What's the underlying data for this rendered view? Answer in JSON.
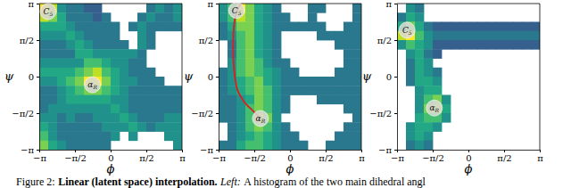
{
  "chart_data": [
    {
      "type": "heatmap",
      "xlabel": "ϕ",
      "ylabel": "ψ",
      "xlim": [
        -3.1416,
        3.1416
      ],
      "ylim": [
        -3.1416,
        3.1416
      ],
      "xticks": [
        {
          "value": -3.1416,
          "label": "−π"
        },
        {
          "value": -1.5708,
          "label": "−π/2"
        },
        0,
        {
          "value": 1.5708,
          "label": "π/2"
        },
        {
          "value": 3.1416,
          "label": "π"
        }
      ],
      "yticks": [
        {
          "value": -3.1416,
          "label": "−π"
        },
        {
          "value": -1.5708,
          "label": "−π/2"
        },
        0,
        {
          "value": 1.5708,
          "label": "π/2"
        },
        {
          "value": 3.1416,
          "label": "π"
        }
      ],
      "x_bins": [
        -3.1416,
        -2.7489,
        -2.3562,
        -1.9635,
        -1.5708,
        -1.1781,
        -0.7854,
        -0.3927,
        0,
        0.3927,
        0.7854,
        1.1781,
        1.5708,
        1.9635,
        2.3562,
        2.7489,
        3.1416
      ],
      "y_bins": [
        3.1416,
        2.7489,
        2.3562,
        1.9635,
        1.5708,
        1.1781,
        0.7854,
        0.3927,
        0,
        -0.3927,
        -0.7854,
        -1.1781,
        -1.5708,
        -1.9635,
        -2.3562,
        -2.7489,
        -3.1416
      ],
      "cells": [
        [
          10,
          9,
          5,
          4,
          4,
          3,
          3,
          null,
          null,
          null,
          null,
          null,
          4,
          5,
          4,
          5
        ],
        [
          9,
          8,
          6,
          4,
          4,
          4,
          3,
          4,
          null,
          null,
          null,
          4,
          5,
          4,
          4,
          5
        ],
        [
          6,
          6,
          6,
          5,
          4,
          4,
          4,
          4,
          4,
          null,
          4,
          5,
          4,
          4,
          4,
          4
        ],
        [
          5,
          5,
          5,
          6,
          5,
          4,
          4,
          4,
          4,
          null,
          null,
          5,
          4,
          null,
          null,
          null
        ],
        [
          4,
          4,
          4,
          5,
          6,
          5,
          4,
          4,
          4,
          4,
          null,
          5,
          4,
          null,
          null,
          null
        ],
        [
          4,
          4,
          4,
          4,
          6,
          6,
          5,
          5,
          5,
          5,
          5,
          4,
          null,
          null,
          null,
          null
        ],
        [
          5,
          5,
          5,
          5,
          5,
          7,
          7,
          6,
          5,
          5,
          4,
          4,
          null,
          null,
          null,
          null
        ],
        [
          6,
          6,
          6,
          6,
          7,
          8,
          9,
          7,
          6,
          5,
          4,
          4,
          4,
          null,
          null,
          null
        ],
        [
          5,
          5,
          6,
          7,
          8,
          10,
          10,
          8,
          6,
          5,
          5,
          4,
          4,
          4,
          null,
          null
        ],
        [
          4,
          4,
          5,
          6,
          7,
          8,
          8,
          7,
          6,
          5,
          4,
          4,
          4,
          4,
          4,
          4
        ],
        [
          4,
          4,
          5,
          6,
          6,
          6,
          6,
          6,
          5,
          5,
          4,
          4,
          4,
          4,
          4,
          4
        ],
        [
          4,
          5,
          5,
          5,
          5,
          5,
          5,
          5,
          6,
          5,
          4,
          4,
          4,
          4,
          4,
          4
        ],
        [
          5,
          5,
          4,
          5,
          4,
          4,
          5,
          5,
          5,
          6,
          5,
          4,
          4,
          4,
          5,
          5
        ],
        [
          6,
          5,
          4,
          4,
          4,
          4,
          4,
          5,
          5,
          5,
          6,
          5,
          4,
          5,
          5,
          5
        ],
        [
          7,
          5,
          4,
          4,
          4,
          4,
          4,
          4,
          5,
          null,
          5,
          null,
          null,
          null,
          5,
          5
        ],
        [
          8,
          6,
          5,
          4,
          4,
          4,
          4,
          4,
          null,
          null,
          null,
          null,
          null,
          null,
          null,
          5
        ]
      ],
      "annotations": [
        {
          "text": "C5",
          "x": -2.75,
          "y": 2.8
        },
        {
          "text": "αR",
          "x": -0.8,
          "y": -0.35
        }
      ]
    },
    {
      "type": "heatmap",
      "xlabel": "ϕ",
      "ylabel": "ψ",
      "xlim": [
        -3.1416,
        3.1416
      ],
      "ylim": [
        -3.1416,
        3.1416
      ],
      "xticks": [
        {
          "value": -3.1416,
          "label": "−π"
        },
        {
          "value": -1.5708,
          "label": "−π/2"
        },
        0,
        {
          "value": 1.5708,
          "label": "π/2"
        },
        {
          "value": 3.1416,
          "label": "π"
        }
      ],
      "yticks": [
        {
          "value": -3.1416,
          "label": "−π"
        },
        {
          "value": -1.5708,
          "label": "−π/2"
        },
        0,
        {
          "value": 1.5708,
          "label": "π/2"
        },
        {
          "value": 3.1416,
          "label": "π"
        }
      ],
      "x_bins": [
        -3.1416,
        -2.7489,
        -2.3562,
        -1.9635,
        -1.5708,
        -1.1781,
        -0.7854,
        -0.3927,
        0,
        0.3927,
        0.7854,
        1.1781,
        1.5708,
        1.9635,
        2.3562,
        2.7489,
        3.1416
      ],
      "y_bins": [
        3.1416,
        2.7489,
        2.3562,
        1.9635,
        1.5708,
        1.1781,
        0.7854,
        0.3927,
        0,
        -0.3927,
        -0.7854,
        -1.1781,
        -1.5708,
        -1.9635,
        -2.3562,
        -2.7489,
        -3.1416
      ],
      "cells": [
        [
          5,
          7,
          10,
          8,
          6,
          5,
          4,
          null,
          null,
          null,
          4,
          4,
          null,
          null,
          null,
          4
        ],
        [
          5,
          7,
          9,
          8,
          6,
          5,
          4,
          4,
          null,
          null,
          4,
          null,
          null,
          null,
          null,
          4
        ],
        [
          4,
          6,
          8,
          8,
          6,
          5,
          4,
          4,
          4,
          4,
          4,
          4,
          null,
          null,
          4,
          4
        ],
        [
          4,
          5,
          7,
          8,
          6,
          5,
          4,
          null,
          null,
          null,
          null,
          4,
          4,
          4,
          4,
          4
        ],
        [
          null,
          4,
          7,
          8,
          6,
          5,
          4,
          null,
          null,
          null,
          null,
          null,
          null,
          4,
          4,
          4
        ],
        [
          null,
          4,
          7,
          8,
          6,
          5,
          4,
          null,
          null,
          null,
          null,
          null,
          null,
          null,
          4,
          4
        ],
        [
          null,
          5,
          7,
          8,
          7,
          5,
          4,
          4,
          null,
          null,
          null,
          null,
          null,
          null,
          4,
          4
        ],
        [
          4,
          5,
          7,
          8,
          7,
          6,
          5,
          4,
          4,
          null,
          null,
          null,
          null,
          4,
          4,
          4
        ],
        [
          4,
          5,
          6,
          7,
          8,
          6,
          5,
          4,
          4,
          4,
          4,
          4,
          4,
          4,
          4,
          4
        ],
        [
          4,
          5,
          6,
          7,
          8,
          7,
          5,
          4,
          4,
          4,
          4,
          4,
          4,
          4,
          4,
          4
        ],
        [
          4,
          4,
          5,
          6,
          8,
          7,
          5,
          4,
          null,
          null,
          null,
          4,
          4,
          4,
          4,
          4
        ],
        [
          4,
          4,
          5,
          7,
          8,
          7,
          5,
          4,
          null,
          null,
          null,
          null,
          null,
          null,
          4,
          4
        ],
        [
          4,
          4,
          5,
          7,
          9,
          8,
          5,
          null,
          null,
          null,
          null,
          null,
          null,
          null,
          null,
          4
        ],
        [
          null,
          4,
          5,
          7,
          8,
          7,
          5,
          4,
          null,
          null,
          null,
          null,
          null,
          null,
          4,
          4
        ],
        [
          null,
          4,
          5,
          6,
          7,
          6,
          5,
          4,
          4,
          null,
          null,
          null,
          null,
          4,
          4,
          4
        ],
        [
          4,
          4,
          6,
          7,
          7,
          6,
          5,
          4,
          4,
          4,
          null,
          null,
          4,
          4,
          4,
          4
        ]
      ],
      "path": {
        "color": "#e41a1c",
        "x": [
          -2.15,
          -2.3,
          -2.45,
          -2.5,
          -2.45,
          -2.3,
          -2.0,
          -1.6,
          -1.3
        ],
        "y": [
          3.1416,
          2.9,
          2.3,
          1.2,
          0.2,
          -0.6,
          -1.1,
          -1.5,
          -1.8
        ]
      },
      "annotations": [
        {
          "text": "C5",
          "x": -2.35,
          "y": 2.85
        },
        {
          "text": "αR",
          "x": -1.3,
          "y": -1.8
        }
      ]
    },
    {
      "type": "heatmap",
      "xlabel": "ϕ",
      "ylabel": "ψ",
      "xlim": [
        -3.1416,
        3.1416
      ],
      "ylim": [
        -3.1416,
        3.1416
      ],
      "xticks": [
        {
          "value": -3.1416,
          "label": "−π"
        },
        {
          "value": -1.5708,
          "label": "−π/2"
        },
        0,
        {
          "value": 1.5708,
          "label": "π/2"
        },
        {
          "value": 3.1416,
          "label": "π"
        }
      ],
      "yticks": [
        {
          "value": -3.1416,
          "label": "−π"
        },
        {
          "value": -1.5708,
          "label": "−π/2"
        },
        0,
        {
          "value": 1.5708,
          "label": "π/2"
        },
        {
          "value": 3.1416,
          "label": "π"
        }
      ],
      "x_bins": [
        -3.1416,
        -2.7489,
        -2.3562,
        -1.9635,
        -1.5708,
        -1.1781,
        -0.7854,
        -0.3927,
        0,
        0.3927,
        0.7854,
        1.1781,
        1.5708,
        1.9635,
        2.3562,
        2.7489,
        3.1416
      ],
      "y_bins": [
        3.1416,
        2.7489,
        2.3562,
        1.9635,
        1.5708,
        1.1781,
        0.7854,
        0.3927,
        0,
        -0.3927,
        -0.7854,
        -1.1781,
        -1.5708,
        -1.9635,
        -2.3562,
        -2.7489,
        -3.1416
      ],
      "cells": [
        [
          null,
          5,
          4,
          null,
          null,
          null,
          null,
          null,
          null,
          null,
          null,
          null,
          null,
          null,
          null,
          null
        ],
        [
          4,
          6,
          5,
          null,
          null,
          null,
          null,
          null,
          null,
          null,
          null,
          null,
          null,
          null,
          null,
          null
        ],
        [
          6,
          8,
          6,
          4,
          3,
          3,
          3,
          3,
          3,
          3,
          3,
          3,
          3,
          3,
          3,
          3
        ],
        [
          9,
          10,
          7,
          5,
          4,
          4,
          4,
          4,
          4,
          4,
          4,
          4,
          4,
          4,
          4,
          4
        ],
        [
          5,
          7,
          6,
          5,
          3,
          3,
          3,
          3,
          3,
          3,
          3,
          3,
          3,
          3,
          3,
          3
        ],
        [
          null,
          5,
          6,
          4,
          3,
          null,
          null,
          null,
          null,
          null,
          null,
          null,
          null,
          null,
          null,
          null
        ],
        [
          null,
          4,
          6,
          5,
          null,
          null,
          null,
          null,
          null,
          null,
          null,
          null,
          null,
          null,
          null,
          null
        ],
        [
          null,
          4,
          6,
          5,
          4,
          null,
          null,
          null,
          null,
          null,
          null,
          null,
          null,
          null,
          null,
          null
        ],
        [
          null,
          4,
          6,
          6,
          5,
          null,
          null,
          null,
          null,
          null,
          null,
          null,
          null,
          null,
          null,
          null
        ],
        [
          null,
          null,
          5,
          6,
          6,
          null,
          null,
          null,
          null,
          null,
          null,
          null,
          null,
          null,
          null,
          null
        ],
        [
          null,
          null,
          5,
          7,
          8,
          5,
          null,
          null,
          null,
          null,
          null,
          null,
          null,
          null,
          null,
          null
        ],
        [
          null,
          null,
          5,
          8,
          9,
          6,
          null,
          null,
          null,
          null,
          null,
          null,
          null,
          null,
          null,
          null
        ],
        [
          null,
          null,
          6,
          7,
          7,
          5,
          null,
          null,
          null,
          null,
          null,
          null,
          null,
          null,
          null,
          null
        ],
        [
          null,
          5,
          6,
          6,
          5,
          null,
          null,
          null,
          null,
          null,
          null,
          null,
          null,
          null,
          null,
          null
        ],
        [
          null,
          5,
          6,
          5,
          null,
          null,
          null,
          null,
          null,
          null,
          null,
          null,
          null,
          null,
          null,
          null
        ],
        [
          null,
          4,
          5,
          4,
          null,
          null,
          null,
          null,
          null,
          null,
          null,
          null,
          null,
          null,
          null,
          null
        ]
      ],
      "annotations": [
        {
          "text": "C5",
          "x": -2.7,
          "y": 2.0
        },
        {
          "text": "αR",
          "x": -1.5,
          "y": -1.35
        }
      ]
    }
  ],
  "caption": [
    "Figure 2:",
    "Linear (latent space) interpolation.",
    "Left:",
    "A histogram of the two main dihedral angl"
  ]
}
